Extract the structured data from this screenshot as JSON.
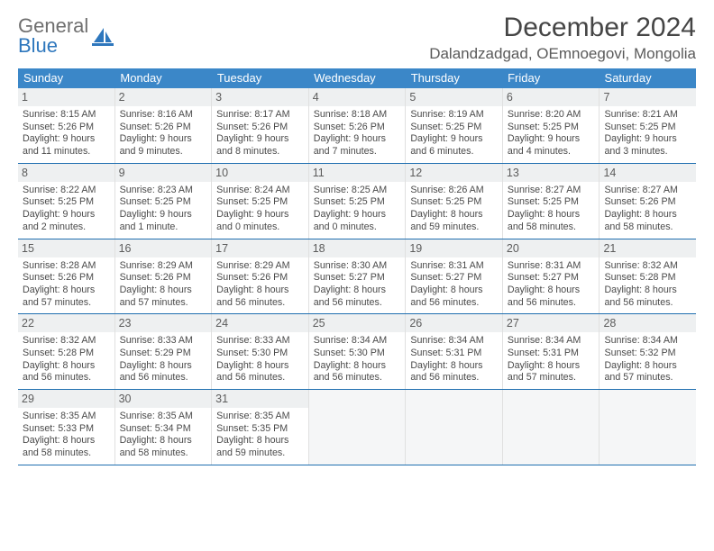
{
  "logo": {
    "text1": "General",
    "text2": "Blue",
    "color1": "#6f6f6f",
    "color2": "#2e77bd"
  },
  "title": "December 2024",
  "location": "Dalandzadgad, OEmnoegovi, Mongolia",
  "colors": {
    "header_bg": "#3b87c8",
    "header_text": "#ffffff",
    "week_border": "#1f6fb0",
    "daynum_bg": "#eef0f1",
    "text": "#4a4a4a"
  },
  "weekdays": [
    "Sunday",
    "Monday",
    "Tuesday",
    "Wednesday",
    "Thursday",
    "Friday",
    "Saturday"
  ],
  "weeks": [
    [
      {
        "n": "1",
        "sunrise": "8:15 AM",
        "sunset": "5:26 PM",
        "daylight": "9 hours and 11 minutes."
      },
      {
        "n": "2",
        "sunrise": "8:16 AM",
        "sunset": "5:26 PM",
        "daylight": "9 hours and 9 minutes."
      },
      {
        "n": "3",
        "sunrise": "8:17 AM",
        "sunset": "5:26 PM",
        "daylight": "9 hours and 8 minutes."
      },
      {
        "n": "4",
        "sunrise": "8:18 AM",
        "sunset": "5:26 PM",
        "daylight": "9 hours and 7 minutes."
      },
      {
        "n": "5",
        "sunrise": "8:19 AM",
        "sunset": "5:25 PM",
        "daylight": "9 hours and 6 minutes."
      },
      {
        "n": "6",
        "sunrise": "8:20 AM",
        "sunset": "5:25 PM",
        "daylight": "9 hours and 4 minutes."
      },
      {
        "n": "7",
        "sunrise": "8:21 AM",
        "sunset": "5:25 PM",
        "daylight": "9 hours and 3 minutes."
      }
    ],
    [
      {
        "n": "8",
        "sunrise": "8:22 AM",
        "sunset": "5:25 PM",
        "daylight": "9 hours and 2 minutes."
      },
      {
        "n": "9",
        "sunrise": "8:23 AM",
        "sunset": "5:25 PM",
        "daylight": "9 hours and 1 minute."
      },
      {
        "n": "10",
        "sunrise": "8:24 AM",
        "sunset": "5:25 PM",
        "daylight": "9 hours and 0 minutes."
      },
      {
        "n": "11",
        "sunrise": "8:25 AM",
        "sunset": "5:25 PM",
        "daylight": "9 hours and 0 minutes."
      },
      {
        "n": "12",
        "sunrise": "8:26 AM",
        "sunset": "5:25 PM",
        "daylight": "8 hours and 59 minutes."
      },
      {
        "n": "13",
        "sunrise": "8:27 AM",
        "sunset": "5:25 PM",
        "daylight": "8 hours and 58 minutes."
      },
      {
        "n": "14",
        "sunrise": "8:27 AM",
        "sunset": "5:26 PM",
        "daylight": "8 hours and 58 minutes."
      }
    ],
    [
      {
        "n": "15",
        "sunrise": "8:28 AM",
        "sunset": "5:26 PM",
        "daylight": "8 hours and 57 minutes."
      },
      {
        "n": "16",
        "sunrise": "8:29 AM",
        "sunset": "5:26 PM",
        "daylight": "8 hours and 57 minutes."
      },
      {
        "n": "17",
        "sunrise": "8:29 AM",
        "sunset": "5:26 PM",
        "daylight": "8 hours and 56 minutes."
      },
      {
        "n": "18",
        "sunrise": "8:30 AM",
        "sunset": "5:27 PM",
        "daylight": "8 hours and 56 minutes."
      },
      {
        "n": "19",
        "sunrise": "8:31 AM",
        "sunset": "5:27 PM",
        "daylight": "8 hours and 56 minutes."
      },
      {
        "n": "20",
        "sunrise": "8:31 AM",
        "sunset": "5:27 PM",
        "daylight": "8 hours and 56 minutes."
      },
      {
        "n": "21",
        "sunrise": "8:32 AM",
        "sunset": "5:28 PM",
        "daylight": "8 hours and 56 minutes."
      }
    ],
    [
      {
        "n": "22",
        "sunrise": "8:32 AM",
        "sunset": "5:28 PM",
        "daylight": "8 hours and 56 minutes."
      },
      {
        "n": "23",
        "sunrise": "8:33 AM",
        "sunset": "5:29 PM",
        "daylight": "8 hours and 56 minutes."
      },
      {
        "n": "24",
        "sunrise": "8:33 AM",
        "sunset": "5:30 PM",
        "daylight": "8 hours and 56 minutes."
      },
      {
        "n": "25",
        "sunrise": "8:34 AM",
        "sunset": "5:30 PM",
        "daylight": "8 hours and 56 minutes."
      },
      {
        "n": "26",
        "sunrise": "8:34 AM",
        "sunset": "5:31 PM",
        "daylight": "8 hours and 56 minutes."
      },
      {
        "n": "27",
        "sunrise": "8:34 AM",
        "sunset": "5:31 PM",
        "daylight": "8 hours and 57 minutes."
      },
      {
        "n": "28",
        "sunrise": "8:34 AM",
        "sunset": "5:32 PM",
        "daylight": "8 hours and 57 minutes."
      }
    ],
    [
      {
        "n": "29",
        "sunrise": "8:35 AM",
        "sunset": "5:33 PM",
        "daylight": "8 hours and 58 minutes."
      },
      {
        "n": "30",
        "sunrise": "8:35 AM",
        "sunset": "5:34 PM",
        "daylight": "8 hours and 58 minutes."
      },
      {
        "n": "31",
        "sunrise": "8:35 AM",
        "sunset": "5:35 PM",
        "daylight": "8 hours and 59 minutes."
      },
      null,
      null,
      null,
      null
    ]
  ],
  "labels": {
    "sunrise": "Sunrise: ",
    "sunset": "Sunset: ",
    "daylight": "Daylight: "
  }
}
